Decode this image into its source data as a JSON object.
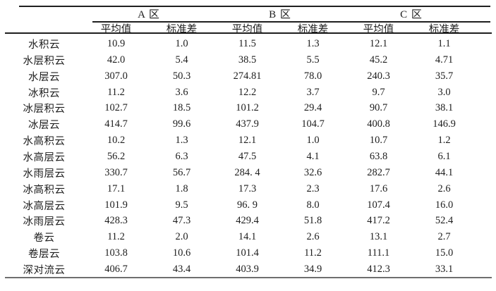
{
  "table": {
    "corner_label": "",
    "region_headers": [
      "A 区",
      "B 区",
      "C 区"
    ],
    "sub_headers": [
      "平均值",
      "标准差",
      "平均值",
      "标准差",
      "平均值",
      "标准差"
    ],
    "rows": [
      {
        "label": "水积云",
        "values": [
          "10.9",
          "1.0",
          "11.5",
          "1.3",
          "12.1",
          "1.1"
        ]
      },
      {
        "label": "水层积云",
        "values": [
          "42.0",
          "5.4",
          "38.5",
          "5.5",
          "45.2",
          "4.71"
        ]
      },
      {
        "label": "水层云",
        "values": [
          "307.0",
          "50.3",
          "274.81",
          "78.0",
          "240.3",
          "35.7"
        ]
      },
      {
        "label": "冰积云",
        "values": [
          "11.2",
          "3.6",
          "12.2",
          "3.7",
          "9.7",
          "3.0"
        ]
      },
      {
        "label": "冰层积云",
        "values": [
          "102.7",
          "18.5",
          "101.2",
          "29.4",
          "90.7",
          "38.1"
        ]
      },
      {
        "label": "冰层云",
        "values": [
          "414.7",
          "99.6",
          "437.9",
          "104.7",
          "400.8",
          "146.9"
        ]
      },
      {
        "label": "水高积云",
        "values": [
          "10.2",
          "1.3",
          "12.1",
          "1.0",
          "10.7",
          "1.2"
        ]
      },
      {
        "label": "水高层云",
        "values": [
          "56.2",
          "6.3",
          "47.5",
          "4.1",
          "63.8",
          "6.1"
        ]
      },
      {
        "label": "水雨层云",
        "values": [
          "330.7",
          "56.7",
          "284. 4",
          "32.6",
          "282.7",
          "44.1"
        ]
      },
      {
        "label": "冰高积云",
        "values": [
          "17.1",
          "1.8",
          "17.3",
          "2.3",
          "17.6",
          "2.6"
        ]
      },
      {
        "label": "冰高层云",
        "values": [
          "101.9",
          "9.5",
          "96. 9",
          "8.0",
          "107.4",
          "16.0"
        ]
      },
      {
        "label": "冰雨层云",
        "values": [
          "428.3",
          "47.3",
          "429.4",
          "51.8",
          "417.2",
          "52.4"
        ]
      },
      {
        "label": "卷云",
        "values": [
          "11.2",
          "2.0",
          "14.1",
          "2.6",
          "13.1",
          "2.7"
        ]
      },
      {
        "label": "卷层云",
        "values": [
          "103.8",
          "10.6",
          "101.4",
          "11.2",
          "111.1",
          "15.0"
        ]
      },
      {
        "label": "深对流云",
        "values": [
          "406.7",
          "43.4",
          "403.9",
          "34.9",
          "412.3",
          "33.1"
        ]
      }
    ]
  }
}
